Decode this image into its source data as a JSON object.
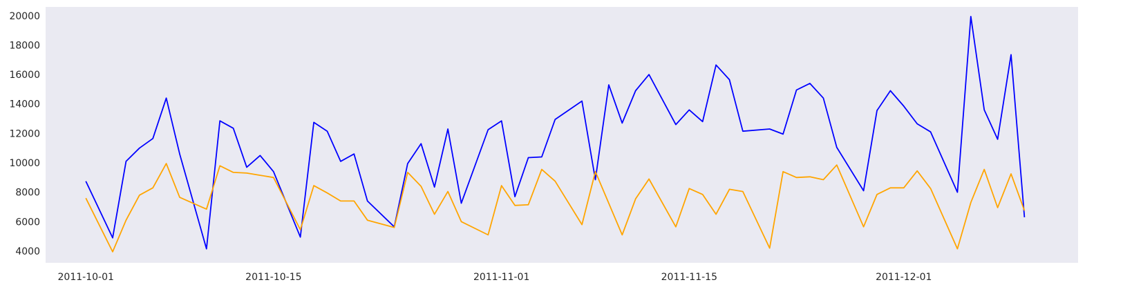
{
  "chart_data": {
    "type": "line",
    "title": "",
    "xlabel": "",
    "ylabel": "",
    "grid": false,
    "background": "#eaeaf2",
    "xlim": [
      "2011-09-28",
      "2011-12-14"
    ],
    "ylim": [
      3200,
      20600
    ],
    "x_ticks": [
      "2011-10-01",
      "2011-10-15",
      "2011-11-01",
      "2011-11-15",
      "2011-12-01"
    ],
    "y_ticks": [
      4000,
      6000,
      8000,
      10000,
      12000,
      14000,
      16000,
      18000,
      20000
    ],
    "series": [
      {
        "color": "#0000ff",
        "points": [
          [
            "2011-10-01",
            8750
          ],
          [
            "2011-10-03",
            4900
          ],
          [
            "2011-10-04",
            10100
          ],
          [
            "2011-10-05",
            11000
          ],
          [
            "2011-10-06",
            11650
          ],
          [
            "2011-10-07",
            14400
          ],
          [
            "2011-10-08",
            10600
          ],
          [
            "2011-10-10",
            4150
          ],
          [
            "2011-10-11",
            12850
          ],
          [
            "2011-10-12",
            12350
          ],
          [
            "2011-10-13",
            9700
          ],
          [
            "2011-10-14",
            10500
          ],
          [
            "2011-10-15",
            9400
          ],
          [
            "2011-10-17",
            4950
          ],
          [
            "2011-10-18",
            12750
          ],
          [
            "2011-10-19",
            12150
          ],
          [
            "2011-10-20",
            10100
          ],
          [
            "2011-10-21",
            10600
          ],
          [
            "2011-10-22",
            7400
          ],
          [
            "2011-10-24",
            5650
          ],
          [
            "2011-10-25",
            9950
          ],
          [
            "2011-10-26",
            11300
          ],
          [
            "2011-10-27",
            8350
          ],
          [
            "2011-10-28",
            12300
          ],
          [
            "2011-10-29",
            7250
          ],
          [
            "2011-10-31",
            12250
          ],
          [
            "2011-11-01",
            12850
          ],
          [
            "2011-11-02",
            7700
          ],
          [
            "2011-11-03",
            10350
          ],
          [
            "2011-11-04",
            10400
          ],
          [
            "2011-11-05",
            12950
          ],
          [
            "2011-11-07",
            14200
          ],
          [
            "2011-11-08",
            8850
          ],
          [
            "2011-11-09",
            15300
          ],
          [
            "2011-11-10",
            12700
          ],
          [
            "2011-11-11",
            14900
          ],
          [
            "2011-11-12",
            16000
          ],
          [
            "2011-11-14",
            12600
          ],
          [
            "2011-11-15",
            13600
          ],
          [
            "2011-11-16",
            12800
          ],
          [
            "2011-11-17",
            16650
          ],
          [
            "2011-11-18",
            15650
          ],
          [
            "2011-11-19",
            12150
          ],
          [
            "2011-11-21",
            12300
          ],
          [
            "2011-11-22",
            11950
          ],
          [
            "2011-11-23",
            14950
          ],
          [
            "2011-11-24",
            15400
          ],
          [
            "2011-11-25",
            14400
          ],
          [
            "2011-11-26",
            11050
          ],
          [
            "2011-11-28",
            8100
          ],
          [
            "2011-11-29",
            13550
          ],
          [
            "2011-11-30",
            14900
          ],
          [
            "2011-12-01",
            13850
          ],
          [
            "2011-12-02",
            12650
          ],
          [
            "2011-12-03",
            12100
          ],
          [
            "2011-12-05",
            8000
          ],
          [
            "2011-12-06",
            19950
          ],
          [
            "2011-12-07",
            13600
          ],
          [
            "2011-12-08",
            11600
          ],
          [
            "2011-12-09",
            17350
          ],
          [
            "2011-12-10",
            6300
          ]
        ]
      },
      {
        "color": "#ffa500",
        "points": [
          [
            "2011-10-01",
            7600
          ],
          [
            "2011-10-03",
            3950
          ],
          [
            "2011-10-04",
            6100
          ],
          [
            "2011-10-05",
            7800
          ],
          [
            "2011-10-06",
            8300
          ],
          [
            "2011-10-07",
            9950
          ],
          [
            "2011-10-08",
            7650
          ],
          [
            "2011-10-10",
            6850
          ],
          [
            "2011-10-11",
            9800
          ],
          [
            "2011-10-12",
            9350
          ],
          [
            "2011-10-13",
            9300
          ],
          [
            "2011-10-14",
            9150
          ],
          [
            "2011-10-15",
            9000
          ],
          [
            "2011-10-17",
            5450
          ],
          [
            "2011-10-18",
            8450
          ],
          [
            "2011-10-19",
            7950
          ],
          [
            "2011-10-20",
            7400
          ],
          [
            "2011-10-21",
            7400
          ],
          [
            "2011-10-22",
            6100
          ],
          [
            "2011-10-24",
            5600
          ],
          [
            "2011-10-25",
            9350
          ],
          [
            "2011-10-26",
            8400
          ],
          [
            "2011-10-27",
            6500
          ],
          [
            "2011-10-28",
            8050
          ],
          [
            "2011-10-29",
            6000
          ],
          [
            "2011-10-31",
            5100
          ],
          [
            "2011-11-01",
            8450
          ],
          [
            "2011-11-02",
            7100
          ],
          [
            "2011-11-03",
            7150
          ],
          [
            "2011-11-04",
            9550
          ],
          [
            "2011-11-05",
            8750
          ],
          [
            "2011-11-07",
            5800
          ],
          [
            "2011-11-08",
            9400
          ],
          [
            "2011-11-10",
            5100
          ],
          [
            "2011-11-11",
            7550
          ],
          [
            "2011-11-12",
            8900
          ],
          [
            "2011-11-14",
            5650
          ],
          [
            "2011-11-15",
            8250
          ],
          [
            "2011-11-16",
            7850
          ],
          [
            "2011-11-17",
            6500
          ],
          [
            "2011-11-18",
            8200
          ],
          [
            "2011-11-19",
            8050
          ],
          [
            "2011-11-21",
            4200
          ],
          [
            "2011-11-22",
            9400
          ],
          [
            "2011-11-23",
            9000
          ],
          [
            "2011-11-24",
            9050
          ],
          [
            "2011-11-25",
            8850
          ],
          [
            "2011-11-26",
            9850
          ],
          [
            "2011-11-28",
            5650
          ],
          [
            "2011-11-29",
            7850
          ],
          [
            "2011-11-30",
            8300
          ],
          [
            "2011-12-01",
            8300
          ],
          [
            "2011-12-02",
            9450
          ],
          [
            "2011-12-03",
            8250
          ],
          [
            "2011-12-05",
            4150
          ],
          [
            "2011-12-06",
            7300
          ],
          [
            "2011-12-07",
            9550
          ],
          [
            "2011-12-08",
            6950
          ],
          [
            "2011-12-09",
            9250
          ],
          [
            "2011-12-10",
            6750
          ]
        ]
      }
    ]
  }
}
